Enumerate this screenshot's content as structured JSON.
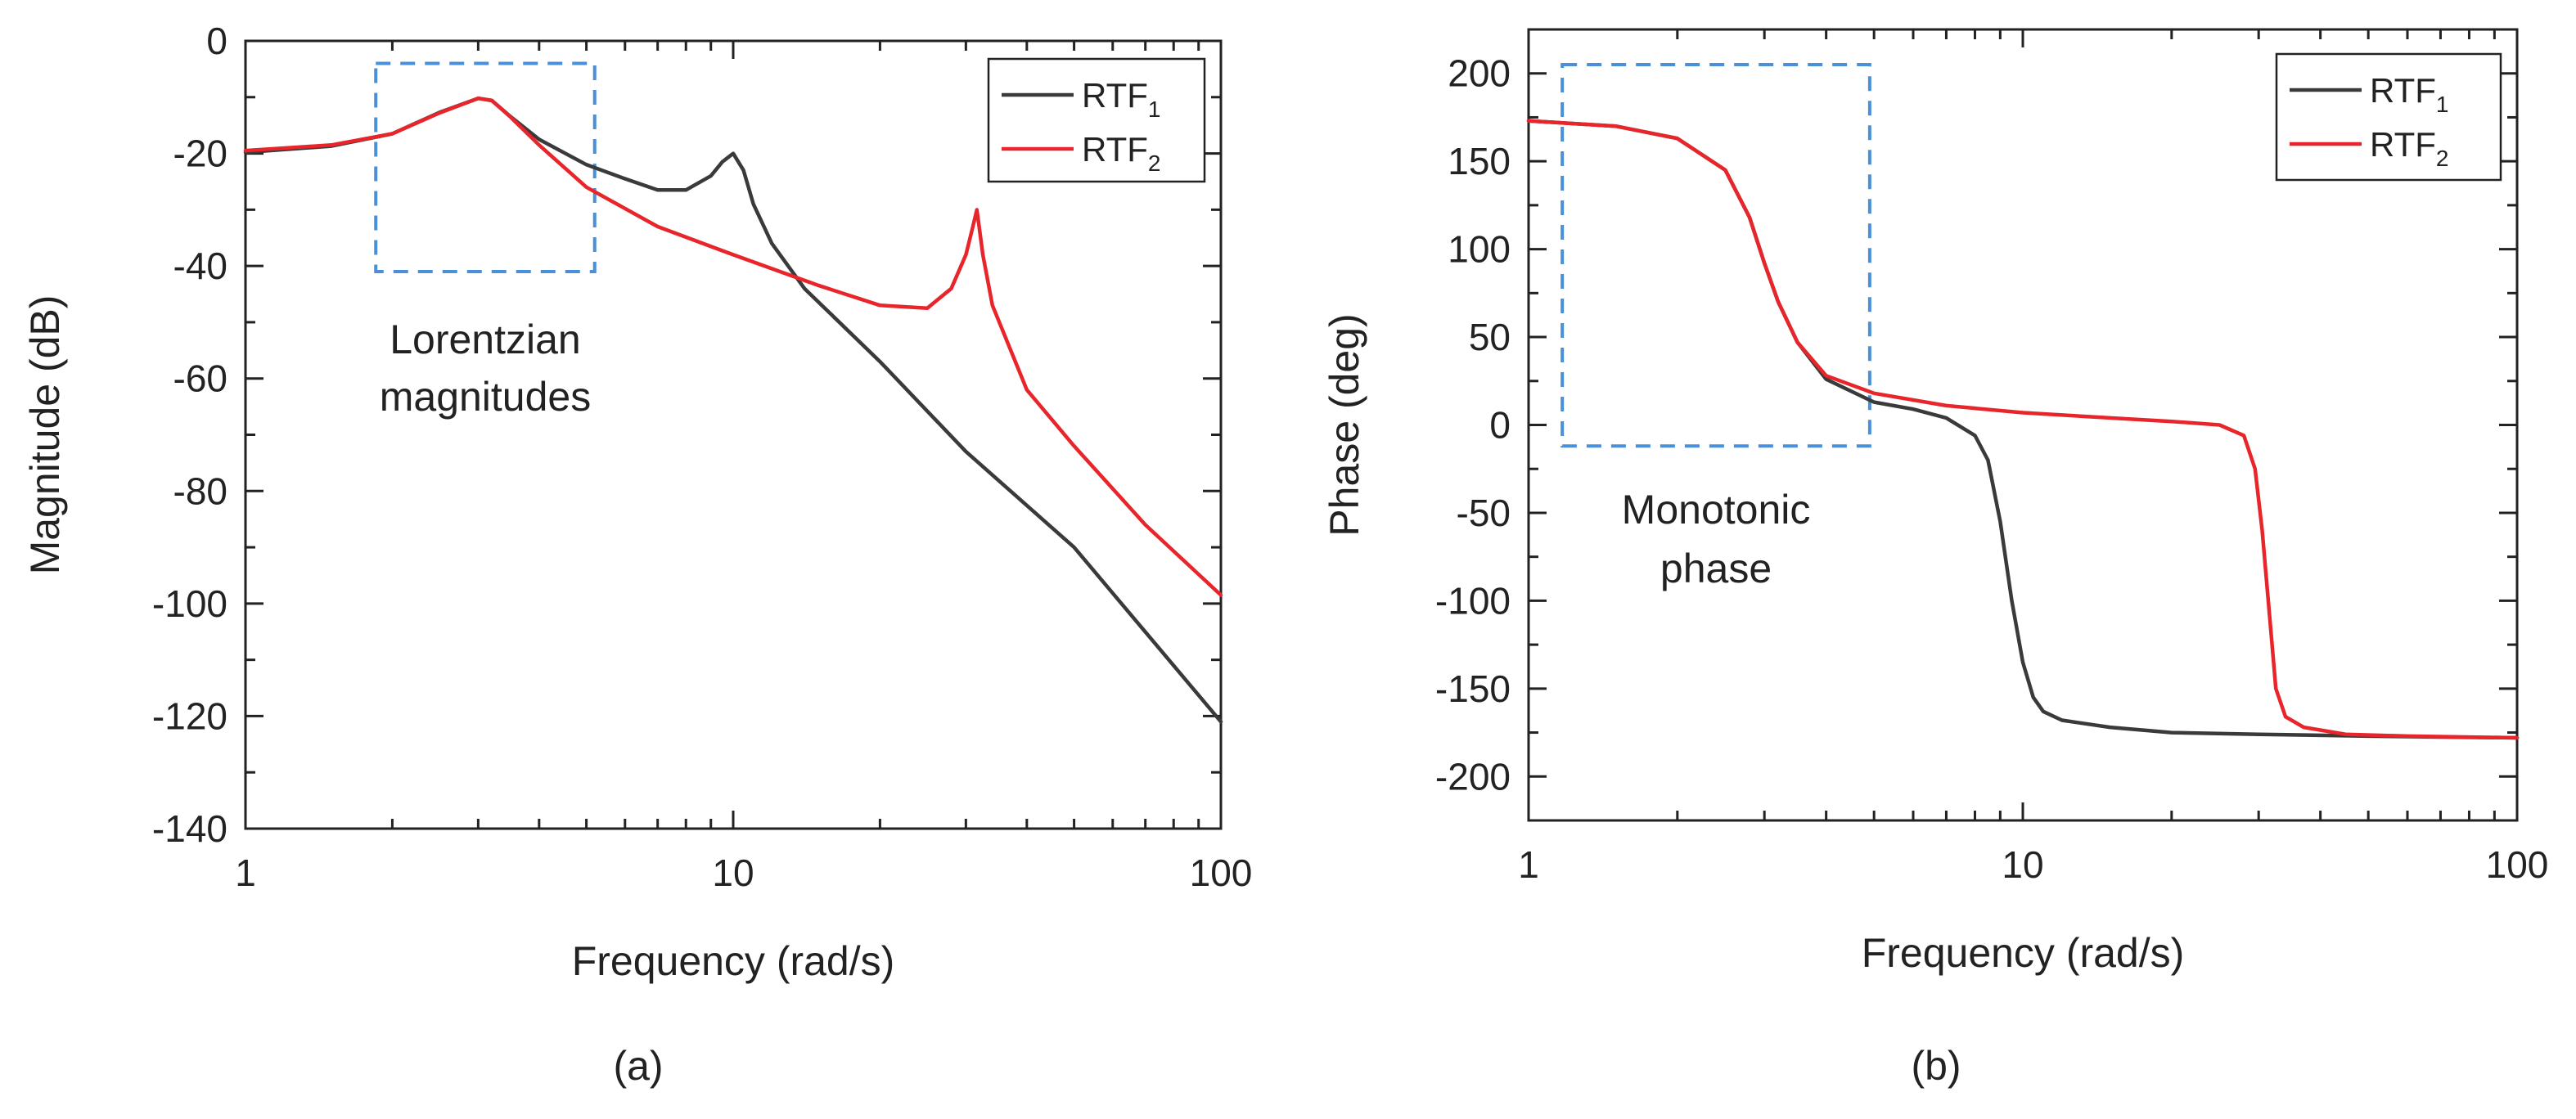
{
  "figure": {
    "captions": [
      "(a)",
      "(b)"
    ]
  },
  "colors": {
    "RTF1": "#3a3a3a",
    "RTF2": "#e8252b",
    "highlight_box": "#4a90d9"
  },
  "chart_data": [
    {
      "type": "line",
      "panel": "(a)",
      "title": "",
      "xlabel": "Frequency (rad/s)",
      "ylabel": "Magnitude (dB)",
      "xscale": "log",
      "xlim": [
        1,
        100
      ],
      "ylim": [
        -140,
        0
      ],
      "xticks": [
        1,
        10,
        100
      ],
      "xtick_labels": [
        "1",
        "10",
        "100"
      ],
      "yticks": [
        0,
        -20,
        -40,
        -60,
        -80,
        -100,
        -120,
        -140
      ],
      "ytick_labels": [
        "0",
        "-20",
        "-40",
        "-60",
        "-80",
        "-100",
        "-120",
        "-140"
      ],
      "legend": {
        "position": "top-right",
        "entries": [
          {
            "base": "RTF",
            "sub": "1"
          },
          {
            "base": "RTF",
            "sub": "2"
          }
        ]
      },
      "annotation": {
        "lines": [
          "Lorentzian",
          "magnitudes"
        ],
        "box_x": [
          1.85,
          5.2
        ],
        "box_y": [
          -41,
          -4
        ]
      },
      "grid": false,
      "series": [
        {
          "name": "RTF1",
          "x": [
            1,
            1.5,
            2,
            2.5,
            3,
            3.2,
            3.5,
            4,
            5,
            6,
            7,
            8,
            9,
            9.5,
            10,
            10.5,
            11,
            12,
            14,
            20,
            30,
            50,
            100
          ],
          "y": [
            -19.8,
            -18.7,
            -16.5,
            -12.7,
            -10.2,
            -10.6,
            -13.5,
            -17.5,
            -22,
            -24.5,
            -26.5,
            -26.5,
            -24,
            -21.5,
            -20,
            -23,
            -29,
            -36,
            -44,
            -57,
            -73,
            -90,
            -121
          ]
        },
        {
          "name": "RTF2",
          "x": [
            1,
            1.5,
            2,
            2.5,
            3,
            3.2,
            3.5,
            4,
            5,
            7,
            10,
            15,
            20,
            25,
            28,
            30,
            31,
            31.6,
            32.5,
            34,
            40,
            50,
            70,
            100
          ],
          "y": [
            -19.5,
            -18.5,
            -16.5,
            -12.8,
            -10.2,
            -10.6,
            -13.6,
            -18.5,
            -26,
            -33,
            -38,
            -43.5,
            -47,
            -47.5,
            -44,
            -38,
            -33,
            -30,
            -38,
            -47,
            -62,
            -72,
            -86,
            -98.5
          ]
        }
      ]
    },
    {
      "type": "line",
      "panel": "(b)",
      "title": "",
      "xlabel": "Frequency (rad/s)",
      "ylabel": "Phase (deg)",
      "xscale": "log",
      "xlim": [
        1,
        100
      ],
      "ylim": [
        -225,
        225
      ],
      "xticks": [
        1,
        10,
        100
      ],
      "xtick_labels": [
        "1",
        "10",
        "100"
      ],
      "yticks": [
        200,
        150,
        100,
        50,
        0,
        -50,
        -100,
        -150,
        -200
      ],
      "ytick_labels": [
        "200",
        "150",
        "100",
        "50",
        "0",
        "-50",
        "-100",
        "-150",
        "-200"
      ],
      "legend": {
        "position": "top-right",
        "entries": [
          {
            "base": "RTF",
            "sub": "1"
          },
          {
            "base": "RTF",
            "sub": "2"
          }
        ]
      },
      "annotation": {
        "lines": [
          "Monotonic",
          "phase"
        ],
        "box_x": [
          1.17,
          4.9
        ],
        "box_y": [
          -12,
          205
        ]
      },
      "grid": false,
      "series": [
        {
          "name": "RTF1",
          "x": [
            1,
            1.5,
            2,
            2.5,
            2.8,
            3,
            3.2,
            3.5,
            4,
            5,
            6,
            7,
            8,
            8.5,
            9,
            9.5,
            10,
            10.5,
            11,
            12,
            15,
            20,
            30,
            50,
            100
          ],
          "y": [
            173,
            170,
            163,
            145,
            118,
            92,
            70,
            47,
            26,
            13,
            9,
            4,
            -6,
            -20,
            -55,
            -100,
            -135,
            -155,
            -163,
            -168,
            -172,
            -175,
            -176,
            -177,
            -178
          ]
        },
        {
          "name": "RTF2",
          "x": [
            1,
            1.5,
            2,
            2.5,
            2.8,
            3,
            3.2,
            3.5,
            4,
            5,
            7,
            10,
            15,
            20,
            25,
            28,
            29.5,
            30.5,
            31.6,
            32.5,
            34,
            37,
            45,
            60,
            100
          ],
          "y": [
            173,
            170,
            163,
            145,
            118,
            92,
            70,
            47,
            28,
            18,
            11,
            7,
            4,
            2,
            0,
            -6,
            -25,
            -60,
            -110,
            -150,
            -166,
            -172,
            -176,
            -177,
            -178
          ]
        }
      ]
    }
  ]
}
